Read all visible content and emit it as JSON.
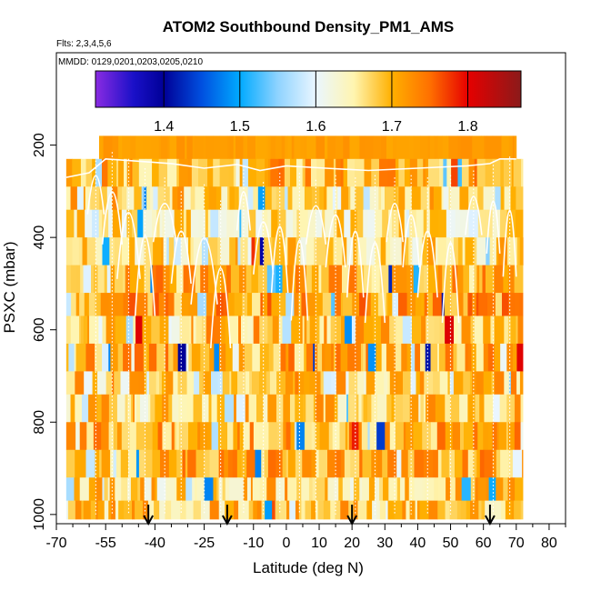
{
  "chart_data": {
    "type": "heatmap",
    "title": "ATOM2 Southbound Density_PM1_AMS",
    "annotations": [
      "Flts: 2,3,4,5,6",
      "MMDD: 0129,0201,0203,0205,0210"
    ],
    "xlabel": "Latitude (deg N)",
    "ylabel": "PSXC (mbar)",
    "xlim": [
      -70,
      85
    ],
    "ylim": [
      1020,
      0
    ],
    "x_ticks": [
      -70,
      -55,
      -40,
      -25,
      -10,
      0,
      10,
      20,
      30,
      40,
      50,
      60,
      70,
      80
    ],
    "y_ticks": [
      200,
      400,
      600,
      800,
      1000
    ],
    "colorbar": {
      "range": [
        1.31,
        1.87
      ],
      "ticks": [
        1.4,
        1.5,
        1.6,
        1.7,
        1.8
      ],
      "tick_labels": [
        "1.4",
        "1.5",
        "1.6",
        "1.7",
        "1.8"
      ],
      "stops": [
        {
          "v": 1.31,
          "c": "#8a2be2"
        },
        {
          "v": 1.36,
          "c": "#1a10c8"
        },
        {
          "v": 1.4,
          "c": "#000097"
        },
        {
          "v": 1.45,
          "c": "#0050e0"
        },
        {
          "v": 1.5,
          "c": "#00aaff"
        },
        {
          "v": 1.55,
          "c": "#8fd3ff"
        },
        {
          "v": 1.6,
          "c": "#eaf6ff"
        },
        {
          "v": 1.65,
          "c": "#fff5b0"
        },
        {
          "v": 1.7,
          "c": "#ffb000"
        },
        {
          "v": 1.75,
          "c": "#ff7000"
        },
        {
          "v": 1.8,
          "c": "#e60000"
        },
        {
          "v": 1.87,
          "c": "#8b1a1a"
        }
      ]
    },
    "lat_range": [
      -67,
      72
    ],
    "pressure_levels": [
      180,
      230,
      290,
      340,
      400,
      460,
      520,
      570,
      630,
      690,
      740,
      800,
      860,
      920,
      970,
      1010
    ],
    "base_density": [
      1.72,
      1.7,
      1.68,
      1.66,
      1.67,
      1.7,
      1.71,
      1.69,
      1.7,
      1.69,
      1.68,
      1.7,
      1.7,
      1.68,
      1.68
    ],
    "flight_markers_lat": [
      -42,
      -18,
      20,
      62
    ]
  }
}
